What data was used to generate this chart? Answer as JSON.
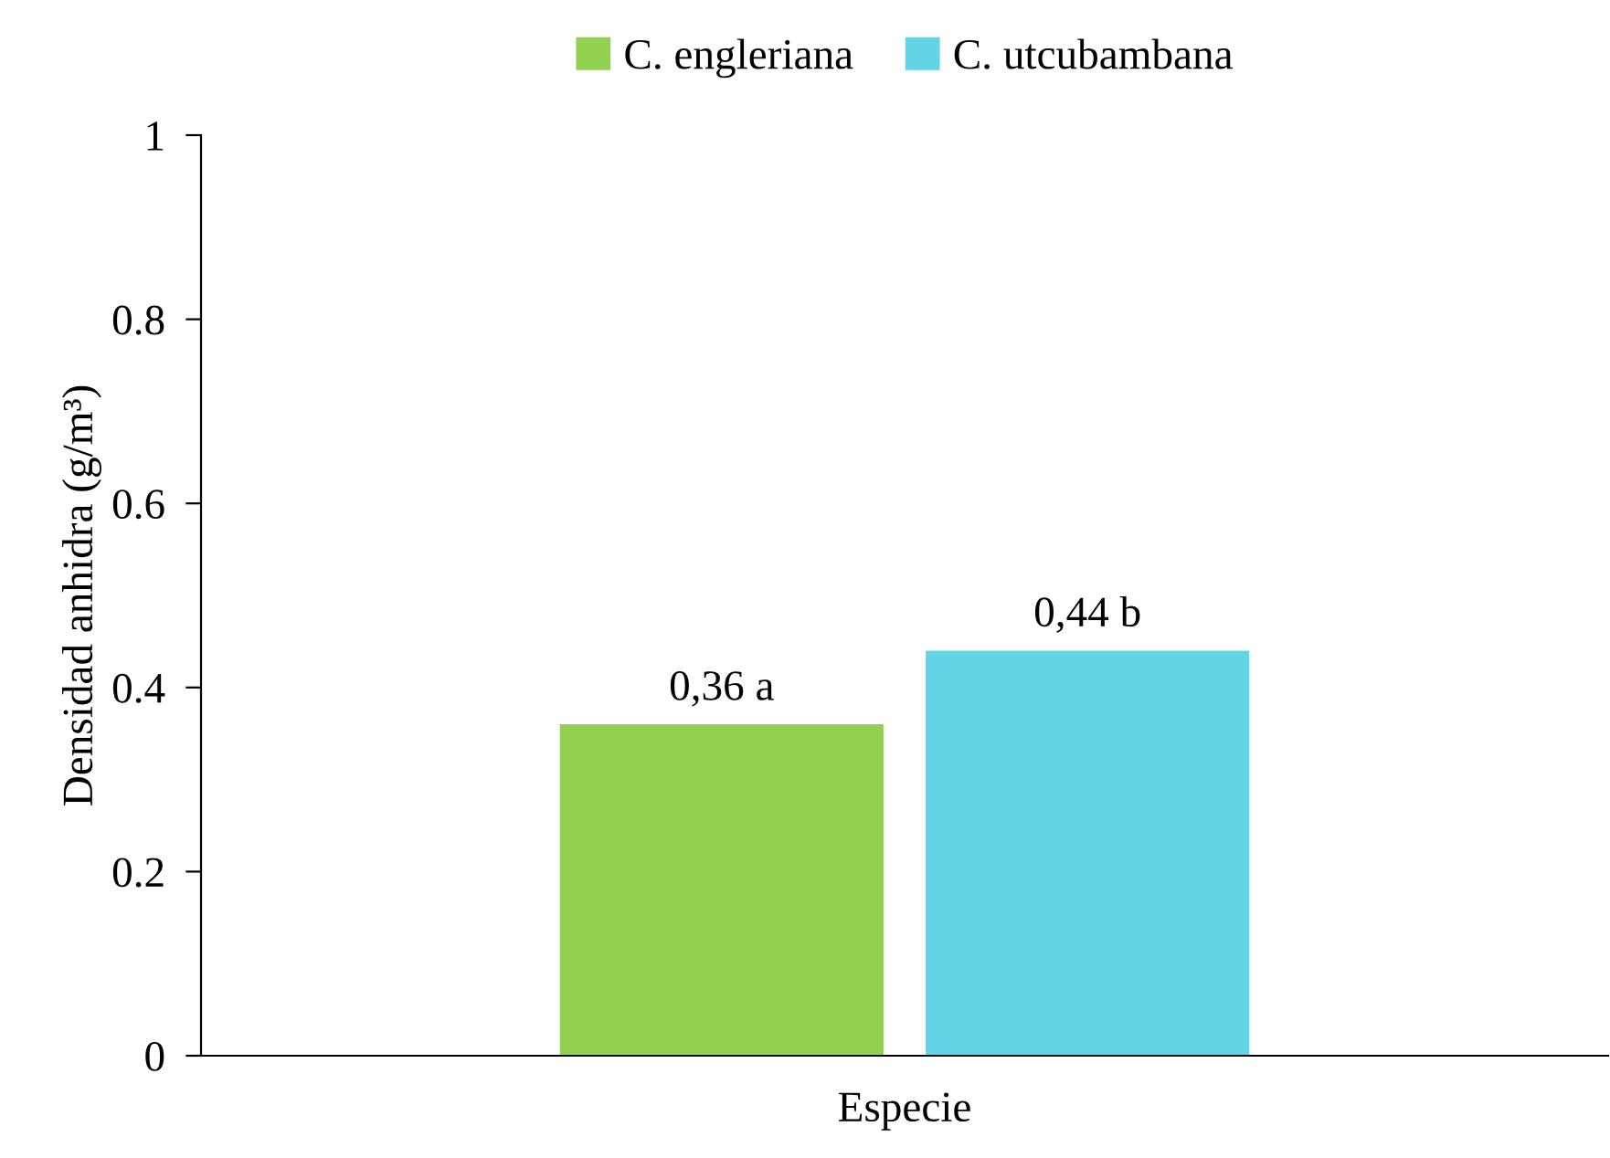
{
  "chart_data": {
    "type": "bar",
    "categories": [
      "Especie"
    ],
    "ylabel": "Densidad anhidra (g/m³)",
    "series": [
      {
        "name": "C. engleriana",
        "color": "#92d050",
        "values": [
          0.36
        ],
        "value_labels": [
          "0,36 a"
        ]
      },
      {
        "name": "C. utcubambana",
        "color": "#61d4e6",
        "values": [
          0.44
        ],
        "value_labels": [
          "0,44 b"
        ]
      }
    ],
    "ylim": [
      0,
      1
    ],
    "yticks": [
      0,
      0.2,
      0.4,
      0.6,
      0.8,
      1
    ],
    "grid": false,
    "legend": "top"
  }
}
